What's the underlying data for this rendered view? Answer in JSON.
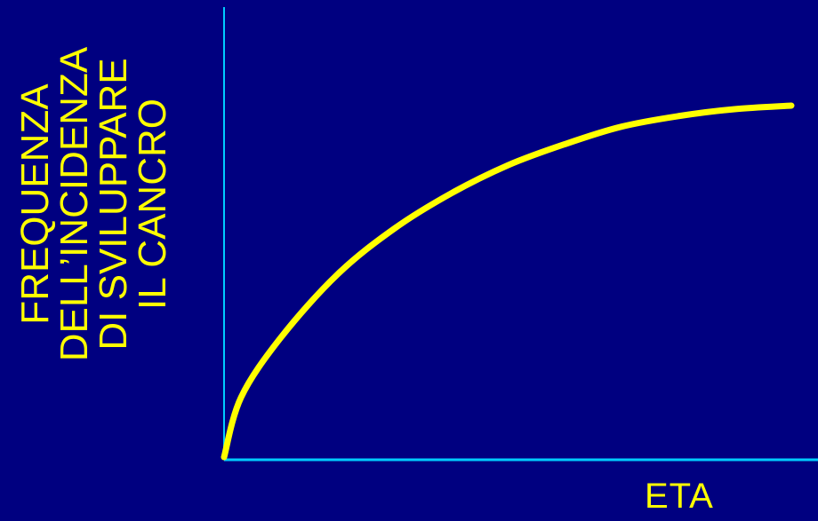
{
  "colors": {
    "background": "#000080",
    "axis": "#00ccff",
    "curve": "#ffff00",
    "text": "#ffff00"
  },
  "chart_data": {
    "type": "line",
    "ylabel_lines": [
      "FREQUENZA",
      "DELL’INCIDENZA",
      "DI SVILUPPARE",
      "IL CANCRO"
    ],
    "xlabel": "ETA",
    "grid": false,
    "series": [
      {
        "x": [
          0,
          0.03,
          0.1,
          0.2,
          0.3,
          0.4,
          0.5,
          0.6,
          0.7,
          0.8,
          0.9,
          1.0
        ],
        "y": [
          0,
          0.17,
          0.34,
          0.52,
          0.65,
          0.75,
          0.83,
          0.89,
          0.94,
          0.97,
          0.99,
          1.0
        ]
      }
    ]
  }
}
